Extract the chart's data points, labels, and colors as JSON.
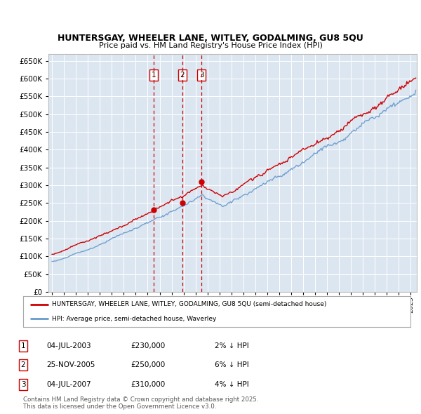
{
  "title": "HUNTERSGAY, WHEELER LANE, WITLEY, GODALMING, GU8 5QU",
  "subtitle": "Price paid vs. HM Land Registry's House Price Index (HPI)",
  "background_color": "#ffffff",
  "plot_bg_color": "#dce6f1",
  "ylim": [
    0,
    670000
  ],
  "yticks": [
    0,
    50000,
    100000,
    150000,
    200000,
    250000,
    300000,
    350000,
    400000,
    450000,
    500000,
    550000,
    600000,
    650000
  ],
  "xlim_start": 1994.7,
  "xlim_end": 2025.5,
  "transactions": [
    {
      "label": "1",
      "date": 2003.5,
      "price": 230000
    },
    {
      "label": "2",
      "date": 2005.9,
      "price": 250000
    },
    {
      "label": "3",
      "date": 2007.5,
      "price": 310000
    }
  ],
  "legend_line1": "HUNTERSGAY, WHEELER LANE, WITLEY, GODALMING, GU8 5QU (semi-detached house)",
  "legend_line2": "HPI: Average price, semi-detached house, Waverley",
  "table_rows": [
    {
      "num": "1",
      "date": "04-JUL-2003",
      "price": "£230,000",
      "pct": "2% ↓ HPI"
    },
    {
      "num": "2",
      "date": "25-NOV-2005",
      "price": "£250,000",
      "pct": "6% ↓ HPI"
    },
    {
      "num": "3",
      "date": "04-JUL-2007",
      "price": "£310,000",
      "pct": "4% ↓ HPI"
    }
  ],
  "footer": "Contains HM Land Registry data © Crown copyright and database right 2025.\nThis data is licensed under the Open Government Licence v3.0.",
  "red_line_color": "#cc0000",
  "blue_line_color": "#6699cc",
  "grid_color": "#ffffff"
}
